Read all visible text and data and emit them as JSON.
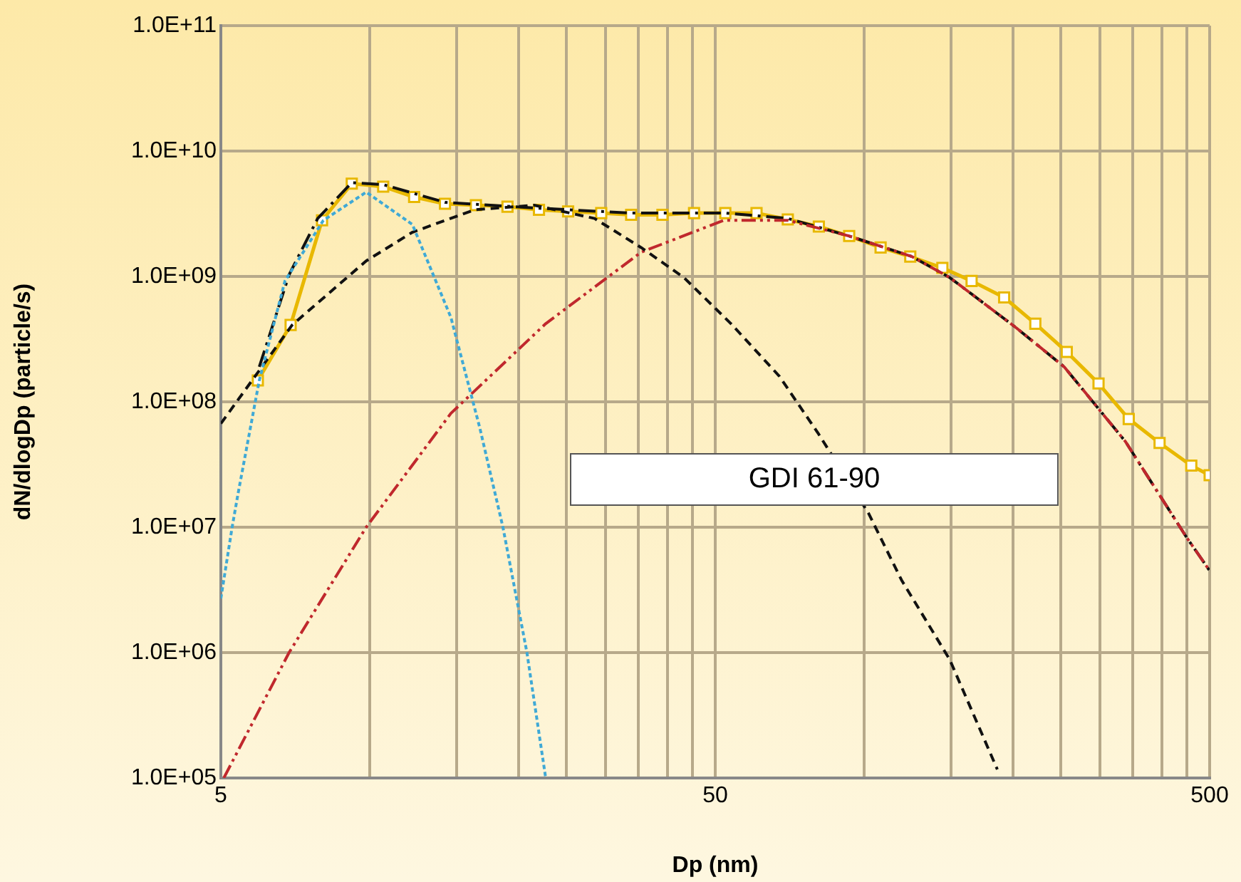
{
  "chart_data": {
    "type": "line",
    "xlabel": "Dp (nm)",
    "ylabel": "dN/dlogDp (particle/s)",
    "log": "xy",
    "xlim": [
      5,
      500
    ],
    "ylim": [
      100000,
      100000000000
    ],
    "xticks": [
      5,
      {
        "value": 10,
        "label": null
      },
      {
        "value": 15,
        "label": null
      },
      {
        "value": 20,
        "label": null
      },
      {
        "value": 25,
        "label": null
      },
      {
        "value": 30,
        "label": null
      },
      {
        "value": 35,
        "label": null
      },
      {
        "value": 40,
        "label": null
      },
      {
        "value": 45,
        "label": null
      },
      50,
      {
        "value": 100,
        "label": null
      },
      {
        "value": 150,
        "label": null
      },
      {
        "value": 200,
        "label": null
      },
      {
        "value": 250,
        "label": null
      },
      {
        "value": 300,
        "label": null
      },
      {
        "value": 350,
        "label": null
      },
      {
        "value": 400,
        "label": null
      },
      {
        "value": 450,
        "label": null
      },
      500
    ],
    "yticks": [
      {
        "value": 100000,
        "label": "1.0E+05"
      },
      {
        "value": 1000000,
        "label": "1.0E+06"
      },
      {
        "value": 10000000,
        "label": "1.0E+07"
      },
      {
        "value": 100000000,
        "label": "1.0E+08"
      },
      {
        "value": 1000000000,
        "label": "1.0E+09"
      },
      {
        "value": 10000000000,
        "label": "1.0E+10"
      },
      {
        "value": 100000000000,
        "label": "1.0E+11"
      }
    ],
    "grid": true,
    "legend": false,
    "annotations": [
      "GDI 61-90"
    ],
    "series": [
      {
        "color": "#3fa9d6",
        "line_style": "dotted",
        "marker": "none",
        "x": [
          5,
          5.27,
          5.41,
          5.98,
          6.74,
          8.06,
          9.84,
          12.2,
          14.6,
          16.7,
          18.6,
          20.8,
          22.7
        ],
        "values": [
          2700000,
          10000000,
          18000000,
          148000000,
          920000000,
          2800000000,
          4700000000,
          2600000000,
          470000000,
          62000000,
          10000000,
          1000000,
          100000
        ]
      },
      {
        "color": "#111111",
        "line_style": "dashed",
        "marker": "none",
        "x": [
          5,
          6.97,
          9.84,
          12.2,
          16.3,
          21.5,
          28.5,
          35.4,
          43.2,
          53.8,
          67.4,
          81,
          102,
          119,
          149,
          186
        ],
        "values": [
          67000000,
          410000000,
          1330000000,
          2250000000,
          3400000000,
          3700000000,
          2900000000,
          1700000000,
          980000000,
          420000000,
          160000000,
          55000000,
          13000000,
          3800000,
          880000,
          117000
        ]
      },
      {
        "color": "#c0282d",
        "line_style": "dashdotdot",
        "marker": "none",
        "x": [
          5.07,
          6.87,
          9.84,
          14.6,
          22.7,
          35.4,
          52,
          70.1,
          93.3,
          125,
          149,
          203,
          254,
          338,
          449,
          500
        ],
        "values": [
          100000,
          1000000,
          10000000,
          81000000,
          420000000,
          1560000000,
          2800000000,
          2800000000,
          2100000000,
          1440000000,
          980000000,
          390000000,
          190000000,
          48000000,
          8300000,
          4500000
        ]
      },
      {
        "color": "#111111",
        "line_style": "dashdot",
        "marker": "none",
        "x": [
          5.98,
          6.87,
          7.85,
          9.2,
          10.65,
          14.2,
          22,
          33.8,
          52.4,
          70.1,
          93.3,
          125,
          149,
          203,
          254,
          338,
          449,
          500
        ],
        "values": [
          190000000,
          1030000000,
          2900000000,
          5600000000,
          5400000000,
          3900000000,
          3500000000,
          3200000000,
          3200000000,
          2900000000,
          2100000000,
          1440000000,
          980000000,
          390000000,
          190000000,
          48000000,
          8300000,
          4500000
        ]
      },
      {
        "color": "#e8b800",
        "line_style": "solid",
        "marker": "square",
        "x": [
          5.94,
          6.92,
          8.01,
          9.2,
          10.65,
          12.3,
          14.2,
          16.4,
          19,
          22,
          25.2,
          29.4,
          33.8,
          39.1,
          45.3,
          52.4,
          60.6,
          70.1,
          81,
          93.3,
          108,
          124,
          144,
          165,
          192,
          222,
          257,
          298,
          343,
          396,
          459,
          500
        ],
        "values": [
          148000000,
          410000000,
          2800000000,
          5500000000,
          5200000000,
          4300000000,
          3800000000,
          3700000000,
          3600000000,
          3400000000,
          3300000000,
          3200000000,
          3100000000,
          3100000000,
          3200000000,
          3200000000,
          3200000000,
          2850000000,
          2500000000,
          2100000000,
          1700000000,
          1440000000,
          1170000000,
          920000000,
          680000000,
          420000000,
          250000000,
          140000000,
          73000000,
          47000000,
          31000000,
          26000000
        ]
      }
    ]
  }
}
